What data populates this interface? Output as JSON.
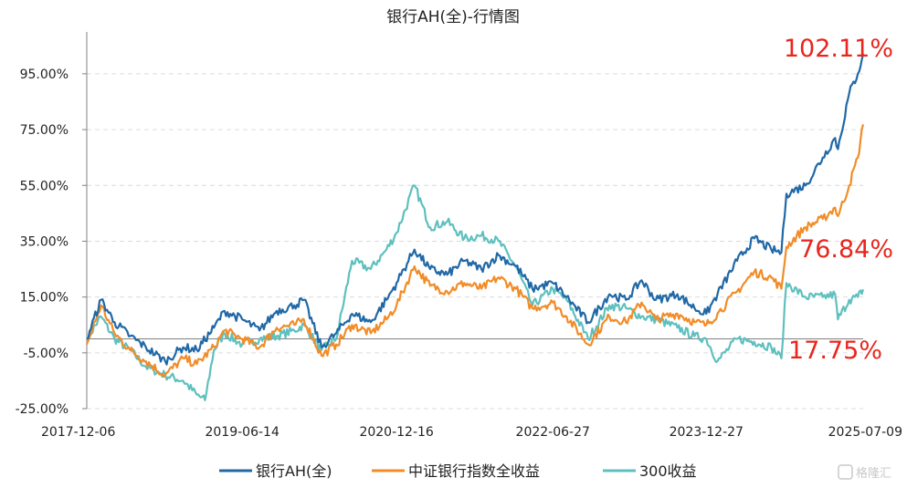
{
  "chart_data": {
    "type": "line",
    "title": "银行AH(全)-行情图",
    "xlabel": "",
    "ylabel": "",
    "x_ticks": [
      "2017-12-06",
      "2019-06-14",
      "2020-12-16",
      "2022-06-27",
      "2023-12-27",
      "2025-07-09"
    ],
    "y_ticks": [
      "95.00%",
      "75.00%",
      "55.00%",
      "35.00%",
      "15.00%",
      "-5.00%",
      "-25.00%"
    ],
    "ylim": [
      -25,
      110
    ],
    "xlim": [
      "2017-12-06",
      "2025-07-09"
    ],
    "grid": "horizontal dashed",
    "legend_position": "bottom",
    "series": [
      {
        "name": "银行AH(全)",
        "color": "#2068a6",
        "end_label": "102.11%",
        "points": [
          [
            "2017-12-06",
            0
          ],
          [
            "2018-01-26",
            14
          ],
          [
            "2018-03-15",
            6
          ],
          [
            "2018-05-10",
            1
          ],
          [
            "2018-07-05",
            -3
          ],
          [
            "2018-09-12",
            -8
          ],
          [
            "2018-11-15",
            -3
          ],
          [
            "2019-01-03",
            -4
          ],
          [
            "2019-03-05",
            4
          ],
          [
            "2019-04-12",
            10
          ],
          [
            "2019-06-14",
            7
          ],
          [
            "2019-08-15",
            3
          ],
          [
            "2019-10-15",
            10
          ],
          [
            "2019-12-17",
            12
          ],
          [
            "2020-01-20",
            14
          ],
          [
            "2020-03-23",
            -3
          ],
          [
            "2020-05-15",
            2
          ],
          [
            "2020-07-10",
            9
          ],
          [
            "2020-09-15",
            6
          ],
          [
            "2020-11-10",
            14
          ],
          [
            "2020-12-16",
            20
          ],
          [
            "2021-02-18",
            32
          ],
          [
            "2021-04-15",
            25
          ],
          [
            "2021-06-15",
            23
          ],
          [
            "2021-08-15",
            28
          ],
          [
            "2021-10-15",
            25
          ],
          [
            "2021-12-15",
            30
          ],
          [
            "2022-02-15",
            26
          ],
          [
            "2022-04-15",
            18
          ],
          [
            "2022-06-27",
            20
          ],
          [
            "2022-08-15",
            15
          ],
          [
            "2022-10-31",
            6
          ],
          [
            "2023-01-15",
            16
          ],
          [
            "2023-03-15",
            14
          ],
          [
            "2023-05-10",
            21
          ],
          [
            "2023-06-30",
            14
          ],
          [
            "2023-09-15",
            16
          ],
          [
            "2023-11-15",
            11
          ],
          [
            "2023-12-27",
            9
          ],
          [
            "2024-02-05",
            16
          ],
          [
            "2024-04-15",
            28
          ],
          [
            "2024-06-15",
            36
          ],
          [
            "2024-08-15",
            32
          ],
          [
            "2024-09-20",
            31
          ],
          [
            "2024-10-08",
            52
          ],
          [
            "2024-12-15",
            55
          ],
          [
            "2025-02-15",
            65
          ],
          [
            "2025-03-31",
            72
          ],
          [
            "2025-04-10",
            68
          ],
          [
            "2025-05-20",
            88
          ],
          [
            "2025-06-20",
            95
          ],
          [
            "2025-07-09",
            102.11
          ]
        ]
      },
      {
        "name": "中证银行指数全收益",
        "color": "#f28c28",
        "end_label": "76.84%",
        "points": [
          [
            "2017-12-06",
            -2
          ],
          [
            "2018-01-26",
            12
          ],
          [
            "2018-03-15",
            2
          ],
          [
            "2018-05-10",
            -4
          ],
          [
            "2018-07-05",
            -8
          ],
          [
            "2018-09-12",
            -13
          ],
          [
            "2018-11-15",
            -7
          ],
          [
            "2019-01-03",
            -9
          ],
          [
            "2019-03-05",
            -3
          ],
          [
            "2019-04-12",
            3
          ],
          [
            "2019-06-14",
            0
          ],
          [
            "2019-08-15",
            -3
          ],
          [
            "2019-10-15",
            4
          ],
          [
            "2019-12-17",
            5
          ],
          [
            "2020-01-20",
            7
          ],
          [
            "2020-03-23",
            -6
          ],
          [
            "2020-05-15",
            -2
          ],
          [
            "2020-07-10",
            5
          ],
          [
            "2020-09-15",
            2
          ],
          [
            "2020-11-10",
            7
          ],
          [
            "2020-12-16",
            12
          ],
          [
            "2021-02-18",
            26
          ],
          [
            "2021-04-15",
            19
          ],
          [
            "2021-06-15",
            17
          ],
          [
            "2021-08-15",
            20
          ],
          [
            "2021-10-15",
            18
          ],
          [
            "2021-12-15",
            22
          ],
          [
            "2022-02-15",
            18
          ],
          [
            "2022-04-15",
            11
          ],
          [
            "2022-06-27",
            13
          ],
          [
            "2022-08-15",
            8
          ],
          [
            "2022-10-31",
            -2
          ],
          [
            "2023-01-15",
            8
          ],
          [
            "2023-03-15",
            6
          ],
          [
            "2023-05-10",
            13
          ],
          [
            "2023-06-30",
            7
          ],
          [
            "2023-09-15",
            9
          ],
          [
            "2023-11-15",
            6
          ],
          [
            "2023-12-27",
            5
          ],
          [
            "2024-02-05",
            9
          ],
          [
            "2024-04-15",
            17
          ],
          [
            "2024-06-15",
            24
          ],
          [
            "2024-08-15",
            22
          ],
          [
            "2024-09-20",
            18
          ],
          [
            "2024-10-08",
            33
          ],
          [
            "2024-12-15",
            40
          ],
          [
            "2025-02-15",
            43
          ],
          [
            "2025-03-31",
            47
          ],
          [
            "2025-04-10",
            44
          ],
          [
            "2025-05-20",
            55
          ],
          [
            "2025-06-20",
            65
          ],
          [
            "2025-07-09",
            76.84
          ]
        ]
      },
      {
        "name": "300收益",
        "color": "#5ec0be",
        "end_label": "17.75%",
        "points": [
          [
            "2017-12-06",
            0
          ],
          [
            "2018-01-26",
            8
          ],
          [
            "2018-03-15",
            0
          ],
          [
            "2018-05-10",
            -4
          ],
          [
            "2018-07-05",
            -10
          ],
          [
            "2018-09-12",
            -13
          ],
          [
            "2018-11-15",
            -15
          ],
          [
            "2019-01-03",
            -20
          ],
          [
            "2019-02-01",
            -22
          ],
          [
            "2019-03-05",
            -4
          ],
          [
            "2019-04-12",
            2
          ],
          [
            "2019-06-14",
            -2
          ],
          [
            "2019-08-15",
            0
          ],
          [
            "2019-10-15",
            1
          ],
          [
            "2019-12-17",
            3
          ],
          [
            "2020-01-20",
            5
          ],
          [
            "2020-03-23",
            -4
          ],
          [
            "2020-05-15",
            0
          ],
          [
            "2020-07-10",
            28
          ],
          [
            "2020-09-15",
            25
          ],
          [
            "2020-11-10",
            32
          ],
          [
            "2020-12-16",
            38
          ],
          [
            "2021-02-18",
            55
          ],
          [
            "2021-04-15",
            40
          ],
          [
            "2021-06-15",
            42
          ],
          [
            "2021-08-15",
            36
          ],
          [
            "2021-10-15",
            37
          ],
          [
            "2021-12-15",
            35
          ],
          [
            "2022-02-15",
            26
          ],
          [
            "2022-04-15",
            12
          ],
          [
            "2022-06-27",
            18
          ],
          [
            "2022-08-15",
            14
          ],
          [
            "2022-10-31",
            0
          ],
          [
            "2023-01-15",
            12
          ],
          [
            "2023-03-15",
            11
          ],
          [
            "2023-05-10",
            8
          ],
          [
            "2023-06-30",
            7
          ],
          [
            "2023-09-15",
            4
          ],
          [
            "2023-11-15",
            1
          ],
          [
            "2023-12-27",
            0
          ],
          [
            "2024-02-05",
            -8
          ],
          [
            "2024-04-15",
            0
          ],
          [
            "2024-06-15",
            -1
          ],
          [
            "2024-08-15",
            -3
          ],
          [
            "2024-09-20",
            -7
          ],
          [
            "2024-10-08",
            20
          ],
          [
            "2024-12-15",
            15
          ],
          [
            "2025-02-15",
            15
          ],
          [
            "2025-03-31",
            16
          ],
          [
            "2025-04-10",
            7
          ],
          [
            "2025-05-20",
            14
          ],
          [
            "2025-06-20",
            15
          ],
          [
            "2025-07-09",
            17.75
          ]
        ]
      }
    ]
  },
  "watermark": "格隆汇"
}
